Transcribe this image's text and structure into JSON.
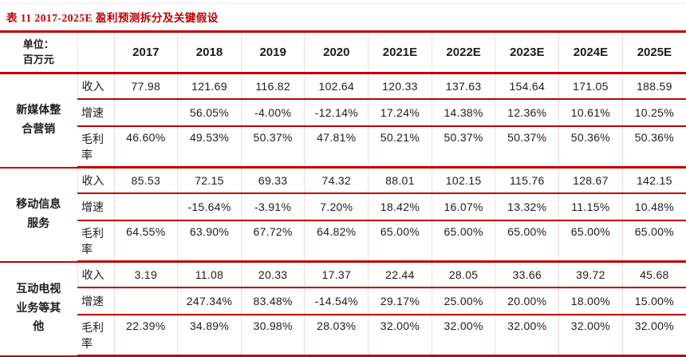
{
  "title": "表 11 2017-2025E 盈利预测拆分及关键假设",
  "colors": {
    "accent_red": "#bf0000",
    "title_red": "#c00000",
    "grid_pink": "#f3dcdc",
    "text": "#1c1c1c"
  },
  "table": {
    "unit_line1": "单位：",
    "unit_line2": "百万元",
    "years": [
      "2017",
      "2018",
      "2019",
      "2020",
      "2021E",
      "2022E",
      "2023E",
      "2024E",
      "2025E"
    ],
    "groups": [
      {
        "name": "新媒体整合营销",
        "rows": [
          {
            "metric": "收入",
            "values": [
              "77.98",
              "121.69",
              "116.82",
              "102.64",
              "120.33",
              "137.63",
              "154.64",
              "171.05",
              "188.59"
            ]
          },
          {
            "metric": "增速",
            "values": [
              "",
              "56.05%",
              "-4.00%",
              "-12.14%",
              "17.24%",
              "14.38%",
              "12.36%",
              "10.61%",
              "10.25%"
            ]
          },
          {
            "metric": "毛利率",
            "values": [
              "46.60%",
              "49.53%",
              "50.37%",
              "47.81%",
              "50.21%",
              "50.37%",
              "50.37%",
              "50.36%",
              "50.36%"
            ]
          }
        ]
      },
      {
        "name": "移动信息服务",
        "rows": [
          {
            "metric": "收入",
            "values": [
              "85.53",
              "72.15",
              "69.33",
              "74.32",
              "88.01",
              "102.15",
              "115.76",
              "128.67",
              "142.15"
            ]
          },
          {
            "metric": "增速",
            "values": [
              "",
              "-15.64%",
              "-3.91%",
              "7.20%",
              "18.42%",
              "16.07%",
              "13.32%",
              "11.15%",
              "10.48%"
            ]
          },
          {
            "metric": "毛利率",
            "values": [
              "64.55%",
              "63.90%",
              "67.72%",
              "64.82%",
              "65.00%",
              "65.00%",
              "65.00%",
              "65.00%",
              "65.00%"
            ]
          }
        ]
      },
      {
        "name": "互动电视业务等其他",
        "rows": [
          {
            "metric": "收入",
            "values": [
              "3.19",
              "11.08",
              "20.33",
              "17.37",
              "22.44",
              "28.05",
              "33.66",
              "39.72",
              "45.68"
            ]
          },
          {
            "metric": "增速",
            "values": [
              "",
              "247.34%",
              "83.48%",
              "-14.54%",
              "29.17%",
              "25.00%",
              "20.00%",
              "18.00%",
              "15.00%"
            ]
          },
          {
            "metric": "毛利率",
            "values": [
              "22.39%",
              "34.89%",
              "30.98%",
              "28.03%",
              "32.00%",
              "32.00%",
              "32.00%",
              "32.00%",
              "32.00%"
            ]
          }
        ]
      }
    ]
  }
}
